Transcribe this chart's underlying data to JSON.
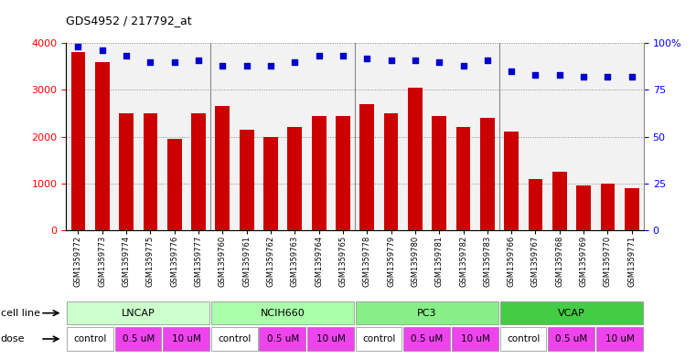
{
  "title": "GDS4952 / 217792_at",
  "samples": [
    "GSM1359772",
    "GSM1359773",
    "GSM1359774",
    "GSM1359775",
    "GSM1359776",
    "GSM1359777",
    "GSM1359760",
    "GSM1359761",
    "GSM1359762",
    "GSM1359763",
    "GSM1359764",
    "GSM1359765",
    "GSM1359778",
    "GSM1359779",
    "GSM1359780",
    "GSM1359781",
    "GSM1359782",
    "GSM1359783",
    "GSM1359766",
    "GSM1359767",
    "GSM1359768",
    "GSM1359769",
    "GSM1359770",
    "GSM1359771"
  ],
  "counts": [
    3800,
    3600,
    2500,
    2500,
    1950,
    2500,
    2650,
    2150,
    2000,
    2200,
    2450,
    2450,
    2700,
    2500,
    3050,
    2450,
    2200,
    2400,
    2100,
    1100,
    1250,
    950,
    1000,
    900
  ],
  "percentile_ranks": [
    98,
    96,
    93,
    90,
    90,
    91,
    88,
    88,
    88,
    90,
    93,
    93,
    92,
    91,
    91,
    90,
    88,
    91,
    85,
    83,
    83,
    82,
    82,
    82
  ],
  "bar_color": "#cc0000",
  "dot_color": "#0000cc",
  "ylim_left": [
    0,
    4000
  ],
  "ylim_right": [
    0,
    100
  ],
  "yticks_left": [
    0,
    1000,
    2000,
    3000,
    4000
  ],
  "yticks_right": [
    0,
    25,
    50,
    75,
    100
  ],
  "cell_line_labels": [
    "LNCAP",
    "NCIH660",
    "PC3",
    "VCAP"
  ],
  "cell_line_starts": [
    0,
    6,
    12,
    18
  ],
  "cell_line_ends": [
    6,
    12,
    18,
    24
  ],
  "cell_line_colors": [
    "#ccffcc",
    "#aaffaa",
    "#88ee88",
    "#44cc44"
  ],
  "dose_labels": [
    "control",
    "0.5 uM",
    "10 uM",
    "control",
    "0.5 uM",
    "10 uM",
    "control",
    "0.5 uM",
    "10 uM",
    "control",
    "0.5 uM",
    "10 uM"
  ],
  "dose_starts": [
    0,
    2,
    4,
    6,
    8,
    10,
    12,
    14,
    16,
    18,
    20,
    22
  ],
  "dose_ends": [
    2,
    4,
    6,
    8,
    10,
    12,
    14,
    16,
    18,
    20,
    22,
    24
  ],
  "dose_colors": [
    "#ffffff",
    "#ee44ee",
    "#ee44ee",
    "#ffffff",
    "#ee44ee",
    "#ee44ee",
    "#ffffff",
    "#ee44ee",
    "#ee44ee",
    "#ffffff",
    "#ee44ee",
    "#ee44ee"
  ],
  "group_separators": [
    6,
    12,
    18
  ],
  "bg_color": "#ffffff",
  "plot_bg_color": "#f2f2f2",
  "grid_color": "#888888",
  "xtick_bg": "#d8d8d8"
}
